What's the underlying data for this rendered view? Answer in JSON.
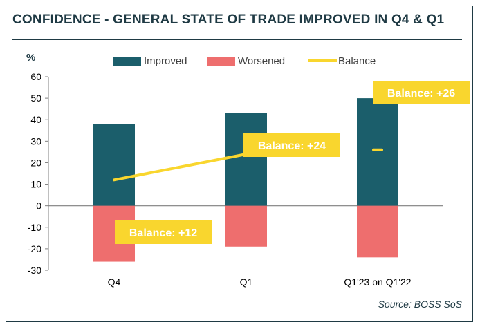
{
  "title": "CONFIDENCE  - GENERAL STATE OF TRADE IMPROVED IN Q4 & Q1",
  "source": "Source: BOSS SoS",
  "colors": {
    "improved": "#1b5e6b",
    "worsened": "#ee6e6e",
    "balance": "#f9d62e",
    "text": "#1f3a44"
  },
  "chart_data": {
    "type": "bar",
    "ylabel": "%",
    "ylim": [
      -30,
      60
    ],
    "yticks": [
      60,
      50,
      40,
      30,
      20,
      10,
      0,
      -10,
      -20,
      -30
    ],
    "categories": [
      "Q4",
      "Q1",
      "Q1'23 on Q1'22"
    ],
    "series": [
      {
        "name": "Improved",
        "type": "bar",
        "values": [
          38,
          43,
          50
        ]
      },
      {
        "name": "Worsened",
        "type": "bar",
        "values": [
          -26,
          -19,
          -24
        ]
      },
      {
        "name": "Balance",
        "type": "line",
        "values": [
          12,
          24,
          26
        ]
      }
    ],
    "annotations": [
      "Balance: +12",
      "Balance: +24",
      "Balance: +26"
    ],
    "legend": "top"
  }
}
